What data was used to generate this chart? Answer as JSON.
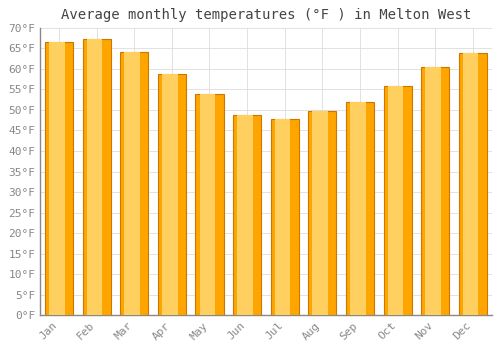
{
  "title": "Average monthly temperatures (°F ) in Melton West",
  "months": [
    "Jan",
    "Feb",
    "Mar",
    "Apr",
    "May",
    "Jun",
    "Jul",
    "Aug",
    "Sep",
    "Oct",
    "Nov",
    "Dec"
  ],
  "values": [
    66.5,
    67.2,
    64.0,
    58.8,
    53.8,
    48.8,
    47.8,
    49.7,
    51.8,
    55.8,
    60.5,
    63.8
  ],
  "bar_color": "#FFA500",
  "bar_edge_color": "#CC7700",
  "background_color": "#FFFFFF",
  "grid_color": "#DDDDDD",
  "ylim": [
    0,
    70
  ],
  "ytick_step": 5,
  "title_fontsize": 10,
  "tick_fontsize": 8,
  "tick_color": "#888888",
  "font_family": "monospace"
}
